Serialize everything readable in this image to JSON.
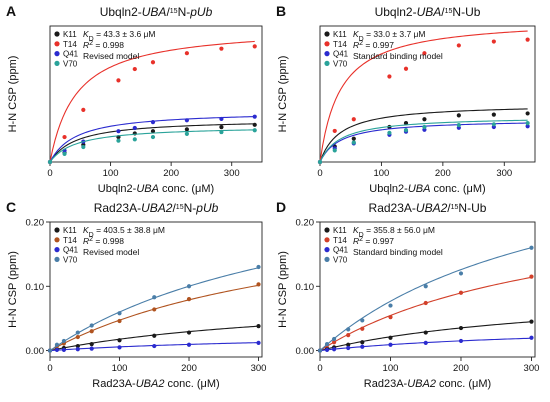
{
  "chart_data": [
    {
      "type": "scatter",
      "panel_letter": "A",
      "title_parts": [
        {
          "text": "Ubqln2-",
          "style": "normal",
          "sup": false
        },
        {
          "text": "UBA",
          "style": "italic",
          "sup": false
        },
        {
          "text": "/",
          "style": "normal",
          "sup": false
        },
        {
          "text": "15",
          "style": "normal",
          "sup": true
        },
        {
          "text": "N-",
          "style": "normal",
          "sup": false
        },
        {
          "text": "pUb",
          "style": "italic",
          "sup": false
        }
      ],
      "xlabel_parts": [
        {
          "text": "Ubqln2-",
          "style": "normal"
        },
        {
          "text": "UBA",
          "style": "italic"
        },
        {
          "text": " conc. (μM)",
          "style": "normal"
        }
      ],
      "ylabel": "H-N CSP (ppm)",
      "xlim": [
        0,
        350
      ],
      "ylim": [
        0,
        0.3
      ],
      "xticks": [
        0,
        100,
        200,
        300
      ],
      "yticks": [],
      "kd_value": " = 43.3 ± 3.6 μM",
      "r2_value": " = 0.998",
      "model": "Revised model",
      "fit_kd": 43.3,
      "x": [
        0,
        24,
        55,
        113,
        140,
        170,
        226,
        283,
        338
      ],
      "series": [
        {
          "name": "K11",
          "color": "#1a1a1a",
          "fit_bmax": 0.095,
          "values": [
            0,
            0.02,
            0.038,
            0.055,
            0.063,
            0.068,
            0.072,
            0.077,
            0.082
          ]
        },
        {
          "name": "T14",
          "color": "#e8312a",
          "fit_bmax": 0.3,
          "values": [
            0,
            0.055,
            0.115,
            0.18,
            0.205,
            0.22,
            0.24,
            0.25,
            0.255
          ]
        },
        {
          "name": "Q41",
          "color": "#2b2bcf",
          "fit_bmax": 0.113,
          "values": [
            0,
            0.025,
            0.045,
            0.068,
            0.075,
            0.088,
            0.092,
            0.095,
            0.1
          ]
        },
        {
          "name": "V70",
          "color": "#2aa39a",
          "fit_bmax": 0.08,
          "values": [
            0,
            0.018,
            0.033,
            0.047,
            0.05,
            0.055,
            0.062,
            0.066,
            0.07
          ]
        }
      ]
    },
    {
      "type": "scatter",
      "panel_letter": "B",
      "title_parts": [
        {
          "text": "Ubqln2-",
          "style": "normal",
          "sup": false
        },
        {
          "text": "UBA",
          "style": "italic",
          "sup": false
        },
        {
          "text": "/",
          "style": "normal",
          "sup": false
        },
        {
          "text": "15",
          "style": "normal",
          "sup": true
        },
        {
          "text": "N-Ub",
          "style": "normal",
          "sup": false
        }
      ],
      "xlabel_parts": [
        {
          "text": "Ubqln2-",
          "style": "normal"
        },
        {
          "text": "UBA",
          "style": "italic"
        },
        {
          "text": " conc. (μM)",
          "style": "normal"
        }
      ],
      "ylabel": "H-N CSP (ppm)",
      "xlim": [
        0,
        350
      ],
      "ylim": [
        0,
        0.35
      ],
      "xticks": [
        0,
        100,
        200,
        300
      ],
      "yticks": [],
      "kd_value": " = 33.0 ± 3.7 μM",
      "r2_value": " = 0.997",
      "model": "Standard binding model",
      "fit_kd": 33.0,
      "x": [
        0,
        24,
        55,
        113,
        140,
        170,
        226,
        283,
        338
      ],
      "series": [
        {
          "name": "K11",
          "color": "#1a1a1a",
          "fit_bmax": 0.15,
          "values": [
            0,
            0.04,
            0.06,
            0.09,
            0.1,
            0.11,
            0.12,
            0.122,
            0.125
          ]
        },
        {
          "name": "T14",
          "color": "#e8312a",
          "fit_bmax": 0.37,
          "values": [
            0,
            0.08,
            0.11,
            0.22,
            0.24,
            0.28,
            0.3,
            0.31,
            0.315
          ]
        },
        {
          "name": "Q41",
          "color": "#2b2bcf",
          "fit_bmax": 0.11,
          "values": [
            0,
            0.035,
            0.048,
            0.07,
            0.078,
            0.083,
            0.088,
            0.09,
            0.092
          ]
        },
        {
          "name": "V70",
          "color": "#2aa39a",
          "fit_bmax": 0.118,
          "values": [
            0,
            0.03,
            0.05,
            0.075,
            0.082,
            0.09,
            0.095,
            0.097,
            0.1
          ]
        }
      ]
    },
    {
      "type": "scatter",
      "panel_letter": "C",
      "title_parts": [
        {
          "text": "Rad23A-",
          "style": "normal",
          "sup": false
        },
        {
          "text": "UBA2",
          "style": "italic",
          "sup": false
        },
        {
          "text": "/",
          "style": "normal",
          "sup": false
        },
        {
          "text": "15",
          "style": "normal",
          "sup": true
        },
        {
          "text": "N-",
          "style": "normal",
          "sup": false
        },
        {
          "text": "pUb",
          "style": "italic",
          "sup": false
        }
      ],
      "xlabel_parts": [
        {
          "text": "Rad23A-",
          "style": "normal"
        },
        {
          "text": "UBA2",
          "style": "italic"
        },
        {
          "text": " conc. (μM)",
          "style": "normal"
        }
      ],
      "ylabel": "H-N CSP (ppm)",
      "xlim": [
        0,
        305
      ],
      "ylim": [
        -0.01,
        0.2
      ],
      "xticks": [
        0,
        100,
        200,
        300
      ],
      "yticks": [
        0.0,
        0.1,
        0.2
      ],
      "ytick_labels": [
        "0.00",
        "0.10",
        "0.20"
      ],
      "kd_value": " = 403.5 ± 38.8 μM",
      "r2_value": " = 0.998",
      "model": "Revised model",
      "fit_kd": 403.5,
      "x": [
        0,
        10,
        20,
        40,
        60,
        100,
        150,
        200,
        300
      ],
      "series": [
        {
          "name": "K11",
          "color": "#1a1a1a",
          "fit_bmax": 0.089,
          "values": [
            0,
            0.002,
            0.004,
            0.007,
            0.01,
            0.016,
            0.023,
            0.028,
            0.038
          ]
        },
        {
          "name": "T14",
          "color": "#b0531f",
          "fit_bmax": 0.238,
          "values": [
            0,
            0.007,
            0.011,
            0.021,
            0.03,
            0.046,
            0.064,
            0.08,
            0.103
          ]
        },
        {
          "name": "Q41",
          "color": "#2b2bcf",
          "fit_bmax": 0.029,
          "values": [
            0,
            0.001,
            0.001,
            0.002,
            0.003,
            0.005,
            0.007,
            0.009,
            0.012
          ]
        },
        {
          "name": "V70",
          "color": "#4a7ea8",
          "fit_bmax": 0.302,
          "values": [
            0,
            0.009,
            0.015,
            0.028,
            0.039,
            0.058,
            0.083,
            0.1,
            0.13
          ]
        }
      ]
    },
    {
      "type": "scatter",
      "panel_letter": "D",
      "title_parts": [
        {
          "text": "Rad23A-",
          "style": "normal",
          "sup": false
        },
        {
          "text": "UBA2",
          "style": "italic",
          "sup": false
        },
        {
          "text": "/",
          "style": "normal",
          "sup": false
        },
        {
          "text": "15",
          "style": "normal",
          "sup": true
        },
        {
          "text": "N-Ub",
          "style": "normal",
          "sup": false
        }
      ],
      "xlabel_parts": [
        {
          "text": "Rad23A-",
          "style": "normal"
        },
        {
          "text": "UBA2",
          "style": "italic"
        },
        {
          "text": " conc. (μM)",
          "style": "normal"
        }
      ],
      "ylabel": "H-N CSP (ppm)",
      "xlim": [
        0,
        305
      ],
      "ylim": [
        -0.01,
        0.2
      ],
      "xticks": [
        0,
        100,
        200,
        300
      ],
      "yticks": [
        0.0,
        0.1,
        0.2
      ],
      "ytick_labels": [
        "0.00",
        "0.10",
        "0.20"
      ],
      "kd_value": " = 355.8 ± 56.0 μM",
      "r2_value": " = 0.997",
      "model": "Standard binding model",
      "fit_kd": 355.8,
      "x": [
        0,
        10,
        20,
        40,
        60,
        100,
        150,
        200,
        300
      ],
      "series": [
        {
          "name": "K11",
          "color": "#1a1a1a",
          "fit_bmax": 0.098,
          "values": [
            0,
            0.003,
            0.005,
            0.009,
            0.013,
            0.02,
            0.028,
            0.035,
            0.045
          ]
        },
        {
          "name": "T14",
          "color": "#d2402a",
          "fit_bmax": 0.249,
          "values": [
            0,
            0.008,
            0.013,
            0.024,
            0.034,
            0.052,
            0.074,
            0.09,
            0.115
          ]
        },
        {
          "name": "Q41",
          "color": "#2b2bcf",
          "fit_bmax": 0.042,
          "values": [
            0,
            0.001,
            0.002,
            0.004,
            0.006,
            0.009,
            0.012,
            0.015,
            0.02
          ]
        },
        {
          "name": "V70",
          "color": "#4a7ea8",
          "fit_bmax": 0.35,
          "values": [
            0,
            0.01,
            0.018,
            0.033,
            0.047,
            0.07,
            0.1,
            0.12,
            0.16
          ]
        }
      ]
    }
  ]
}
